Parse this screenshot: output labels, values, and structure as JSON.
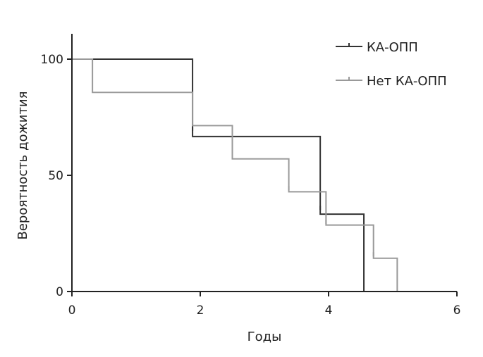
{
  "chart_data": {
    "type": "line",
    "subtype": "kaplan-meier step",
    "xlabel": "Годы",
    "ylabel": "Вероятность дожития",
    "xlim": [
      0,
      6
    ],
    "ylim": [
      0,
      100
    ],
    "x_ticks": [
      0,
      2,
      4,
      6
    ],
    "y_ticks": [
      0,
      50,
      100
    ],
    "x_tick_labels": [
      "0",
      "2",
      "4",
      "6"
    ],
    "y_tick_labels": [
      "0",
      "50",
      "100"
    ],
    "grid": false,
    "legend_position": "top-right",
    "series": [
      {
        "name": "КА-ОПП",
        "color": "#333333",
        "steps": [
          [
            0,
            100
          ],
          [
            1.88,
            66.7
          ],
          [
            3.87,
            33.3
          ],
          [
            4.55,
            0
          ]
        ],
        "censored": [
          [
            1.88,
            70
          ],
          [
            3.87,
            36
          ]
        ]
      },
      {
        "name": "Нет КА-ОПП",
        "color": "#999999",
        "steps": [
          [
            0,
            100
          ],
          [
            0.32,
            85.7
          ],
          [
            1.88,
            71.4
          ],
          [
            2.5,
            57.1
          ],
          [
            3.38,
            42.9
          ],
          [
            3.96,
            28.6
          ],
          [
            4.7,
            14.3
          ],
          [
            5.07,
            0
          ]
        ],
        "censored": [
          [
            2.5,
            59
          ],
          [
            3.38,
            44.5
          ],
          [
            3.96,
            30
          ],
          [
            4.7,
            16
          ]
        ]
      }
    ]
  }
}
